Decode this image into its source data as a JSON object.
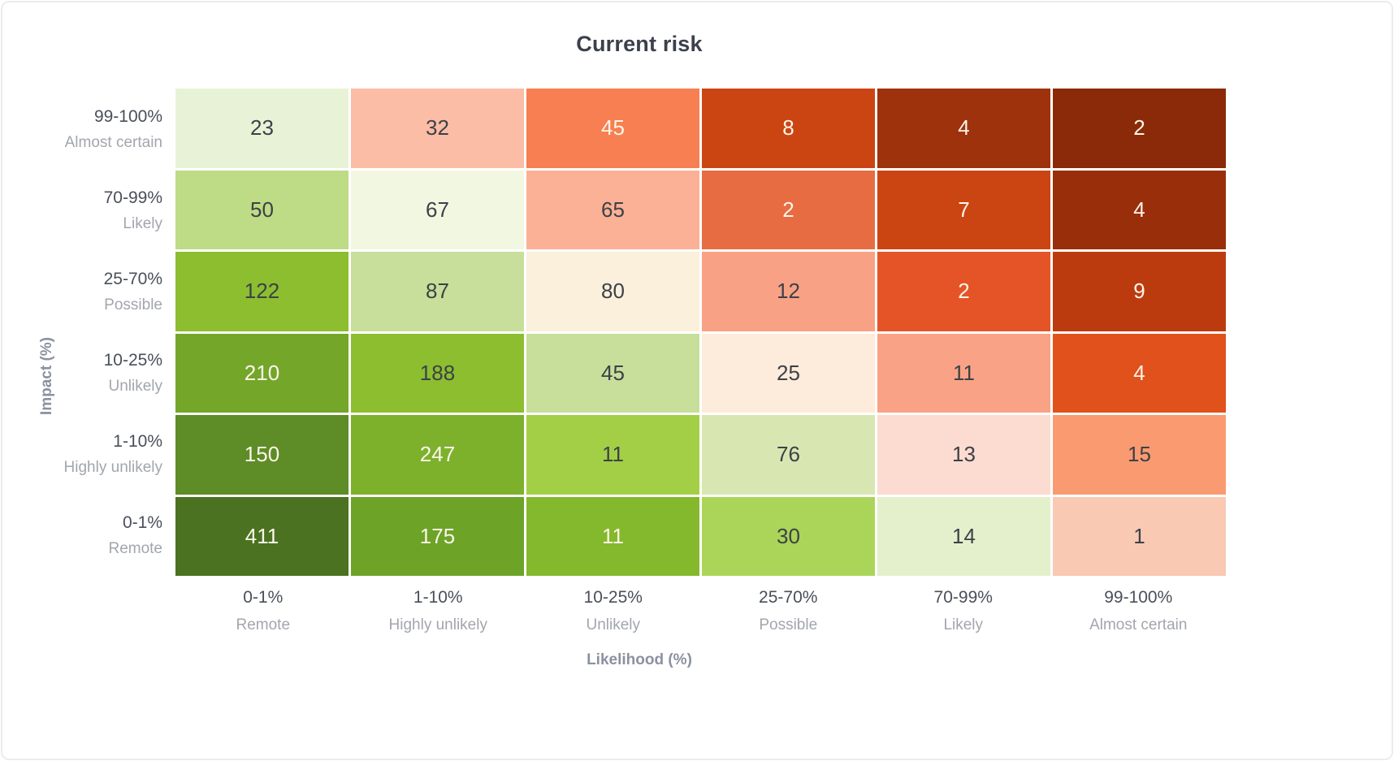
{
  "chart_data": {
    "type": "heatmap",
    "title": "Current risk",
    "xlabel": "Likelihood (%)",
    "ylabel": "Impact (%)",
    "legend": "none",
    "grid": "off",
    "rows": [
      {
        "range": "99-100%",
        "label": "Almost certain"
      },
      {
        "range": "70-99%",
        "label": "Likely"
      },
      {
        "range": "25-70%",
        "label": "Possible"
      },
      {
        "range": "10-25%",
        "label": "Unlikely"
      },
      {
        "range": "1-10%",
        "label": "Highly unlikely"
      },
      {
        "range": "0-1%",
        "label": "Remote"
      }
    ],
    "columns": [
      {
        "range": "0-1%",
        "label": "Remote"
      },
      {
        "range": "1-10%",
        "label": "Highly unlikely"
      },
      {
        "range": "10-25%",
        "label": "Unlikely"
      },
      {
        "range": "25-70%",
        "label": "Possible"
      },
      {
        "range": "70-99%",
        "label": "Likely"
      },
      {
        "range": "99-100%",
        "label": "Almost certain"
      }
    ],
    "values": [
      [
        23,
        32,
        45,
        8,
        4,
        2
      ],
      [
        50,
        67,
        65,
        2,
        7,
        4
      ],
      [
        122,
        87,
        80,
        12,
        2,
        9
      ],
      [
        210,
        188,
        45,
        25,
        11,
        4
      ],
      [
        150,
        247,
        11,
        76,
        13,
        15
      ],
      [
        411,
        175,
        11,
        30,
        14,
        1
      ]
    ],
    "cell_colors": [
      [
        "#e8f2d7",
        "#fbbda6",
        "#f87f51",
        "#cb4513",
        "#9e320d",
        "#8a2a09"
      ],
      [
        "#bedb85",
        "#f2f7e2",
        "#fbb195",
        "#e86c41",
        "#cb4513",
        "#992e0b"
      ],
      [
        "#8cbe2f",
        "#c7df9b",
        "#faf0dc",
        "#f9a184",
        "#e55426",
        "#bc3b0e"
      ],
      [
        "#73a629",
        "#8cbe2f",
        "#c7df9b",
        "#fdebdc",
        "#faa285",
        "#e0511b"
      ],
      [
        "#5e8c26",
        "#7db12c",
        "#a3cf47",
        "#d8e7b2",
        "#fcdcd1",
        "#fa9a71"
      ],
      [
        "#4a7220",
        "#6da327",
        "#85b92d",
        "#abd558",
        "#e4f0cc",
        "#f9c9b4"
      ]
    ],
    "cell_text": [
      [
        "d",
        "d",
        "l",
        "l",
        "l",
        "l"
      ],
      [
        "d",
        "d",
        "d",
        "l",
        "l",
        "l"
      ],
      [
        "d",
        "d",
        "d",
        "d",
        "l",
        "l"
      ],
      [
        "l",
        "d",
        "d",
        "d",
        "d",
        "l"
      ],
      [
        "l",
        "l",
        "d",
        "d",
        "d",
        "d"
      ],
      [
        "l",
        "l",
        "l",
        "d",
        "d",
        "d"
      ]
    ],
    "colors": {
      "text_dark": "#3d4147",
      "text_light": "#fcf5ea",
      "title": "#3b404c",
      "axis_title": "#8b919f",
      "tick_primary": "#4a4f59",
      "tick_secondary": "#a2a6ad",
      "card_border": "#ebecef",
      "background": "#ffffff"
    }
  }
}
